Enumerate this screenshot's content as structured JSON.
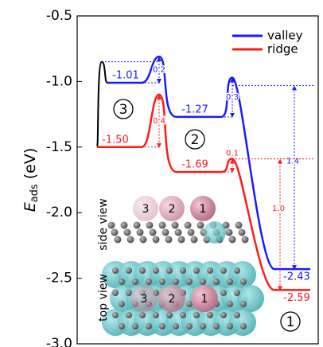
{
  "chart_data": {
    "type": "energy_profile",
    "y_label": {
      "symbol": "E",
      "subscript": "ads",
      "unit": "(eV)"
    },
    "ylim": [
      -3,
      -0.5
    ],
    "yticks": [
      -0.5,
      {
        "value": -1,
        "label": "-1.0"
      },
      -1.5,
      {
        "value": -2,
        "label": "-2.0"
      },
      -2.5,
      {
        "value": -3,
        "label": "-3.0"
      }
    ],
    "legend": "upper right",
    "initial": {
      "color": "#000000",
      "peak": -0.85
    },
    "series": [
      {
        "name": "valley",
        "color": "#1a1aff",
        "values": [
          -1.01,
          -1.27,
          -2.43
        ],
        "value_labels": [
          "-1.01",
          "-1.27",
          "-2.43"
        ],
        "barriers": [
          0.2,
          0.3
        ],
        "release": 1.4
      },
      {
        "name": "ridge",
        "color": "#ff1a1a",
        "values": [
          -1.5,
          -1.69,
          -2.59
        ],
        "value_labels": [
          "-1.50",
          "-1.69",
          "-2.59"
        ],
        "barriers": [
          0.4,
          0.1
        ],
        "release": {
          "value": 1,
          "label": "1.0"
        }
      }
    ],
    "states": [
      "3",
      "2",
      "1"
    ],
    "inset": {
      "side_label": "side view",
      "top_label": "top view",
      "side_sites": [
        "3",
        "2",
        "1"
      ],
      "top_sites": [
        "3",
        "2",
        "1"
      ]
    }
  }
}
